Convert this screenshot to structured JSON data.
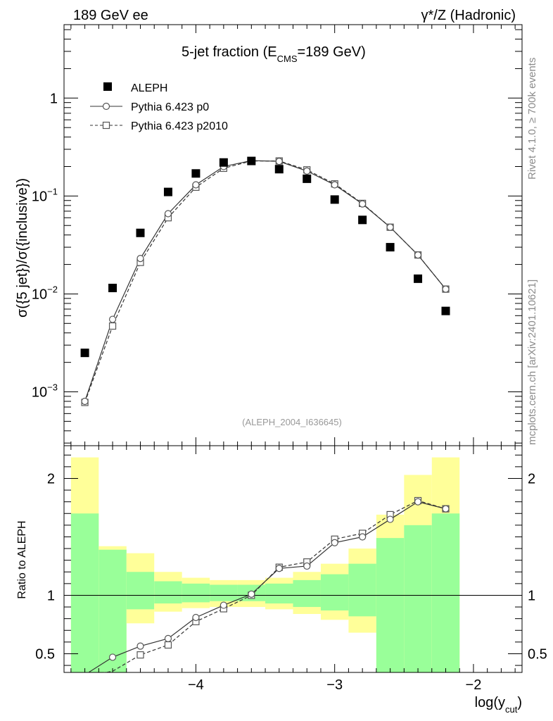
{
  "header": {
    "left": "189 GeV ee",
    "right": "γ*/Z (Hadronic)"
  },
  "side_labels": {
    "rivet": "Rivet 4.1.0, ≥ 700k events",
    "mcplots": "mcplots.cern.ch [arXiv:2401.10621]"
  },
  "chart_data": {
    "type": "scatter",
    "title_main": "5-jet fraction (E",
    "title_sub": "CMS",
    "title_tail": "=189 GeV)",
    "analysis_tag": "(ALEPH_2004_I636645)",
    "xlabel_main": "log(y",
    "xlabel_sub": "cut",
    "xlabel_tail": ")",
    "ylabel": "σ({5 jet})/σ({inclusive})",
    "ratio_ylabel": "Ratio to ALEPH",
    "xlim": [
      -4.95,
      -1.65
    ],
    "ylim_log": [
      -3.55,
      0.75
    ],
    "ratio_ylim": [
      0.34,
      2.28
    ],
    "x_ticks": [
      -4,
      -3,
      -2
    ],
    "x_tick_labels": [
      "−4",
      "−3",
      "−2"
    ],
    "y_ticks_exp": [
      -3,
      -2,
      -1,
      0
    ],
    "y_tick_labels": [
      {
        "base": "10",
        "exp": "−3"
      },
      {
        "base": "10",
        "exp": "−2"
      },
      {
        "base": "10",
        "exp": "−1"
      },
      {
        "base": "1",
        "exp": ""
      }
    ],
    "ratio_ticks": [
      0.5,
      1,
      2
    ],
    "ratio_tick_labels": [
      "0.5",
      "1",
      "2"
    ],
    "x": [
      -4.8,
      -4.6,
      -4.4,
      -4.2,
      -4.0,
      -3.8,
      -3.6,
      -3.4,
      -3.2,
      -3.0,
      -2.8,
      -2.6,
      -2.4,
      -2.2
    ],
    "bin_edges": [
      -4.9,
      -4.7,
      -4.5,
      -4.3,
      -4.1,
      -3.9,
      -3.7,
      -3.5,
      -3.3,
      -3.1,
      -2.9,
      -2.7,
      -2.5,
      -2.3,
      -2.1
    ],
    "series": [
      {
        "name": "ALEPH",
        "marker": "filled-square",
        "values": [
          0.0025,
          0.0115,
          0.042,
          0.11,
          0.17,
          0.22,
          0.228,
          0.188,
          0.15,
          0.092,
          0.057,
          0.03,
          0.0143,
          0.0067
        ]
      },
      {
        "name": "Pythia 6.423 p0",
        "marker": "open-circle",
        "line": "solid",
        "values": [
          0.0008,
          0.0055,
          0.023,
          0.066,
          0.13,
          0.2,
          0.23,
          0.226,
          0.18,
          0.13,
          0.083,
          0.048,
          0.025,
          0.0112
        ],
        "ratio": [
          0.32,
          0.47,
          0.565,
          0.63,
          0.81,
          0.915,
          1.01,
          1.23,
          1.25,
          1.45,
          1.5,
          1.65,
          1.8,
          1.74
        ]
      },
      {
        "name": "Pythia 6.423 p2010",
        "marker": "open-square",
        "line": "dashed",
        "values": [
          0.00078,
          0.0047,
          0.021,
          0.06,
          0.123,
          0.192,
          0.228,
          0.228,
          0.185,
          0.133,
          0.084,
          0.048,
          0.025,
          0.0112
        ],
        "ratio": [
          0.31,
          0.35,
          0.49,
          0.575,
          0.775,
          0.885,
          1.0,
          1.24,
          1.285,
          1.48,
          1.53,
          1.69,
          1.81,
          1.74
        ]
      }
    ],
    "ratio_bands": {
      "green_color": "#99ff99",
      "yellow_color": "#ffff99",
      "green_lo": [
        0.3,
        0.3,
        0.88,
        0.93,
        0.94,
        0.95,
        0.95,
        0.93,
        0.9,
        0.87,
        0.82,
        0.3,
        0.3,
        0.3
      ],
      "green_hi": [
        1.7,
        1.39,
        1.2,
        1.12,
        1.1,
        1.09,
        1.09,
        1.1,
        1.13,
        1.18,
        1.27,
        1.49,
        1.6,
        1.7
      ],
      "yellow_lo": [
        0.3,
        0.42,
        0.76,
        0.86,
        0.89,
        0.9,
        0.9,
        0.88,
        0.84,
        0.79,
        0.68,
        0.3,
        0.3,
        0.3
      ],
      "yellow_hi": [
        2.18,
        1.42,
        1.36,
        1.2,
        1.15,
        1.13,
        1.13,
        1.15,
        1.2,
        1.27,
        1.4,
        1.69,
        2.03,
        2.18
      ]
    }
  }
}
